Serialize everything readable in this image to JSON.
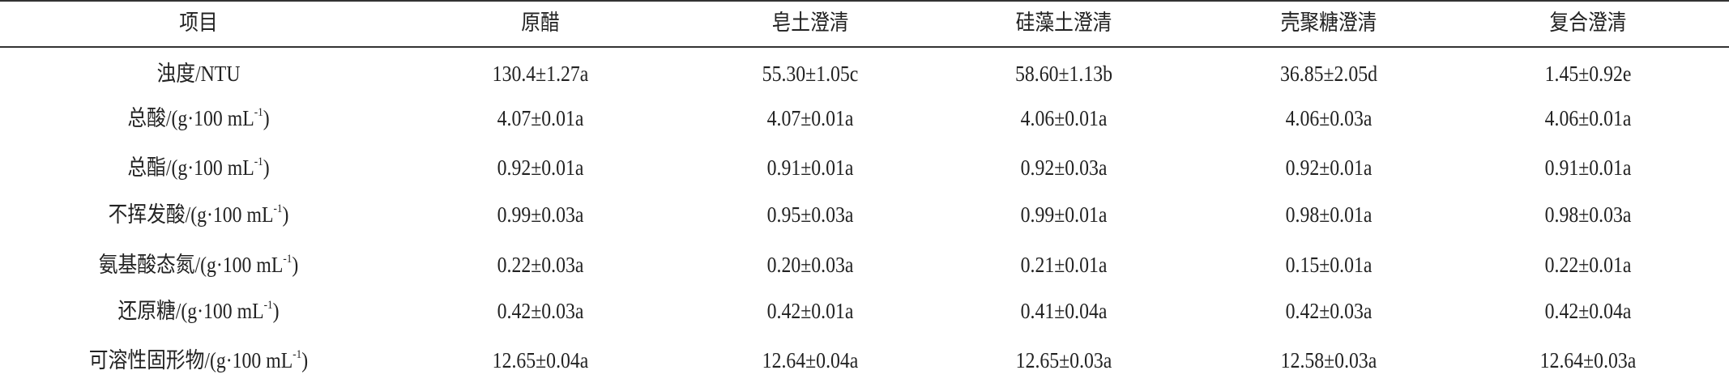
{
  "table": {
    "headers": [
      "项目",
      "原醋",
      "皂土澄清",
      "硅藻土澄清",
      "壳聚糖澄清",
      "复合澄清"
    ],
    "rows": [
      {
        "label": "浊度/NTU",
        "sup": "",
        "close": "",
        "values": [
          "130.4±1.27a",
          "55.30±1.05c",
          "58.60±1.13b",
          "36.85±2.05d",
          "1.45±0.92e"
        ]
      },
      {
        "label": "总酸/(g·100 mL",
        "sup": "-1",
        "close": ")",
        "values": [
          "4.07±0.01a",
          "4.07±0.01a",
          "4.06±0.01a",
          "4.06±0.03a",
          "4.06±0.01a"
        ]
      },
      {
        "label": "总酯/(g·100 mL",
        "sup": "-1",
        "close": ")",
        "values": [
          "0.92±0.01a",
          "0.91±0.01a",
          "0.92±0.03a",
          "0.92±0.01a",
          "0.91±0.01a"
        ]
      },
      {
        "label": "不挥发酸/(g·100 mL",
        "sup": "-1",
        "close": ")",
        "values": [
          "0.99±0.03a",
          "0.95±0.03a",
          "0.99±0.01a",
          "0.98±0.01a",
          "0.98±0.03a"
        ]
      },
      {
        "label": "氨基酸态氮/(g·100 mL",
        "sup": "-1",
        "close": ")",
        "values": [
          "0.22±0.03a",
          "0.20±0.03a",
          "0.21±0.01a",
          "0.15±0.01a",
          "0.22±0.01a"
        ]
      },
      {
        "label": "还原糖/(g·100 mL",
        "sup": "-1",
        "close": ")",
        "values": [
          "0.42±0.03a",
          "0.42±0.01a",
          "0.41±0.04a",
          "0.42±0.03a",
          "0.42±0.04a"
        ]
      },
      {
        "label": "可溶性固形物/(g·100 mL",
        "sup": "-1",
        "close": ")",
        "values": [
          "12.65±0.04a",
          "12.64±0.04a",
          "12.65±0.03a",
          "12.58±0.03a",
          "12.64±0.03a"
        ]
      }
    ]
  }
}
